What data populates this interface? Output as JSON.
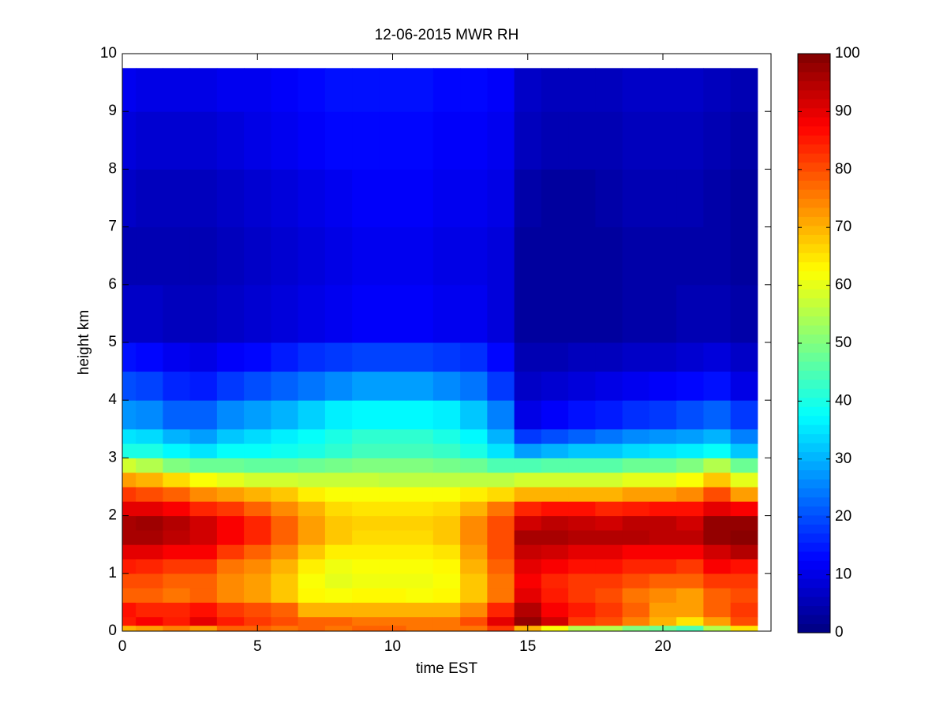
{
  "chart_data": {
    "type": "heatmap",
    "title": "12-06-2015 MWR RH",
    "xlabel": "time EST",
    "ylabel": "height km",
    "x_edges": [
      0,
      0.5,
      1.5,
      2.5,
      3.5,
      4.5,
      5.5,
      6.5,
      7.5,
      8.5,
      9.5,
      10.5,
      11.5,
      12.5,
      13.5,
      14.5,
      15.5,
      16.5,
      17.5,
      18.5,
      19.5,
      20.5,
      21.5,
      22.5,
      23.5
    ],
    "y_edges": [
      0,
      0.1,
      0.25,
      0.5,
      0.75,
      1.0,
      1.25,
      1.5,
      1.75,
      2.0,
      2.25,
      2.5,
      2.75,
      3.0,
      3.25,
      3.5,
      4,
      4.5,
      5,
      6,
      7,
      8,
      9,
      9.75
    ],
    "z": [
      [
        70,
        72,
        75,
        72,
        78,
        78,
        76,
        78,
        76,
        78,
        78,
        76,
        76,
        76,
        82,
        70,
        62,
        55,
        55,
        50,
        48,
        45,
        55,
        65
      ],
      [
        85,
        88,
        85,
        90,
        85,
        82,
        80,
        78,
        78,
        76,
        76,
        76,
        76,
        80,
        90,
        98,
        92,
        82,
        80,
        75,
        70,
        65,
        72,
        80
      ],
      [
        86,
        84,
        84,
        86,
        82,
        80,
        78,
        70,
        70,
        70,
        70,
        70,
        70,
        74,
        84,
        95,
        88,
        85,
        82,
        78,
        72,
        72,
        78,
        82
      ],
      [
        78,
        78,
        76,
        78,
        74,
        72,
        68,
        63,
        62,
        63,
        63,
        62,
        63,
        68,
        76,
        90,
        85,
        82,
        80,
        76,
        74,
        72,
        78,
        80
      ],
      [
        80,
        80,
        78,
        78,
        74,
        72,
        68,
        62,
        60,
        61,
        61,
        61,
        62,
        68,
        76,
        88,
        84,
        82,
        82,
        80,
        78,
        78,
        82,
        82
      ],
      [
        85,
        84,
        82,
        82,
        76,
        74,
        70,
        64,
        61,
        62,
        62,
        62,
        63,
        70,
        78,
        90,
        88,
        86,
        86,
        84,
        84,
        82,
        88,
        86
      ],
      [
        90,
        90,
        88,
        88,
        82,
        78,
        74,
        68,
        64,
        64,
        64,
        64,
        65,
        72,
        80,
        93,
        92,
        90,
        90,
        88,
        88,
        88,
        92,
        95
      ],
      [
        96,
        96,
        94,
        92,
        88,
        84,
        78,
        72,
        68,
        66,
        66,
        66,
        68,
        74,
        80,
        96,
        96,
        95,
        95,
        95,
        94,
        94,
        98,
        99
      ],
      [
        96,
        97,
        95,
        92,
        88,
        84,
        78,
        72,
        68,
        67,
        67,
        67,
        68,
        74,
        80,
        92,
        94,
        93,
        92,
        94,
        94,
        92,
        98,
        98
      ],
      [
        90,
        90,
        88,
        84,
        82,
        78,
        74,
        70,
        66,
        65,
        65,
        65,
        66,
        70,
        76,
        84,
        86,
        86,
        84,
        85,
        86,
        86,
        90,
        88
      ],
      [
        82,
        80,
        78,
        74,
        72,
        70,
        68,
        64,
        62,
        62,
        62,
        62,
        62,
        64,
        66,
        70,
        70,
        70,
        70,
        72,
        72,
        74,
        80,
        72
      ],
      [
        72,
        70,
        66,
        62,
        60,
        58,
        58,
        57,
        57,
        57,
        56,
        56,
        56,
        56,
        56,
        58,
        58,
        58,
        58,
        60,
        60,
        62,
        68,
        60
      ],
      [
        58,
        55,
        50,
        48,
        48,
        47,
        47,
        48,
        49,
        50,
        50,
        50,
        49,
        48,
        45,
        45,
        46,
        46,
        46,
        48,
        48,
        50,
        55,
        48
      ],
      [
        40,
        40,
        37,
        35,
        38,
        38,
        39,
        40,
        42,
        44,
        44,
        44,
        43,
        40,
        35,
        28,
        30,
        32,
        32,
        34,
        35,
        36,
        38,
        32
      ],
      [
        35,
        34,
        30,
        28,
        32,
        34,
        36,
        38,
        40,
        42,
        42,
        42,
        40,
        37,
        30,
        18,
        20,
        22,
        24,
        26,
        27,
        28,
        30,
        25
      ],
      [
        27,
        26,
        22,
        22,
        26,
        28,
        30,
        33,
        36,
        37,
        37,
        37,
        36,
        32,
        25,
        10,
        12,
        14,
        15,
        17,
        18,
        20,
        22,
        18
      ],
      [
        20,
        19,
        16,
        15,
        18,
        20,
        22,
        24,
        26,
        28,
        28,
        28,
        26,
        24,
        18,
        7,
        8,
        9,
        10,
        11,
        12,
        13,
        14,
        10
      ],
      [
        14,
        13,
        11,
        10,
        12,
        13,
        15,
        17,
        18,
        19,
        19,
        19,
        18,
        17,
        13,
        5,
        5,
        6,
        6,
        7,
        7,
        8,
        9,
        7
      ],
      [
        7,
        7,
        6,
        6,
        7,
        8,
        9,
        10,
        11,
        12,
        12,
        12,
        11,
        11,
        9,
        3,
        3,
        3,
        3,
        4,
        4,
        5,
        5,
        4
      ],
      [
        5,
        5,
        5,
        5,
        6,
        7,
        8,
        9,
        10,
        11,
        11,
        11,
        10,
        10,
        9,
        3,
        3,
        3,
        3,
        4,
        4,
        4,
        4,
        3
      ],
      [
        7,
        6,
        6,
        6,
        7,
        8,
        9,
        10,
        11,
        12,
        12,
        12,
        11,
        11,
        10,
        4,
        3,
        3,
        4,
        5,
        5,
        5,
        4,
        3
      ],
      [
        9,
        8,
        8,
        8,
        9,
        10,
        11,
        12,
        13,
        13,
        13,
        13,
        12,
        12,
        11,
        6,
        5,
        5,
        5,
        6,
        6,
        6,
        5,
        4
      ],
      [
        11,
        10,
        10,
        10,
        11,
        11,
        12,
        13,
        14,
        14,
        14,
        14,
        13,
        13,
        12,
        7,
        6,
        6,
        6,
        7,
        7,
        7,
        6,
        5
      ]
    ],
    "xlim": [
      0,
      24
    ],
    "xticks": [
      0,
      5,
      10,
      15,
      20
    ],
    "ylim": [
      0,
      10
    ],
    "yticks": [
      0,
      1,
      2,
      3,
      4,
      5,
      6,
      7,
      8,
      9,
      10
    ],
    "colormap": "jet",
    "clim": [
      0,
      100
    ],
    "cticks": [
      0,
      10,
      20,
      30,
      40,
      50,
      60,
      70,
      80,
      90,
      100
    ]
  }
}
